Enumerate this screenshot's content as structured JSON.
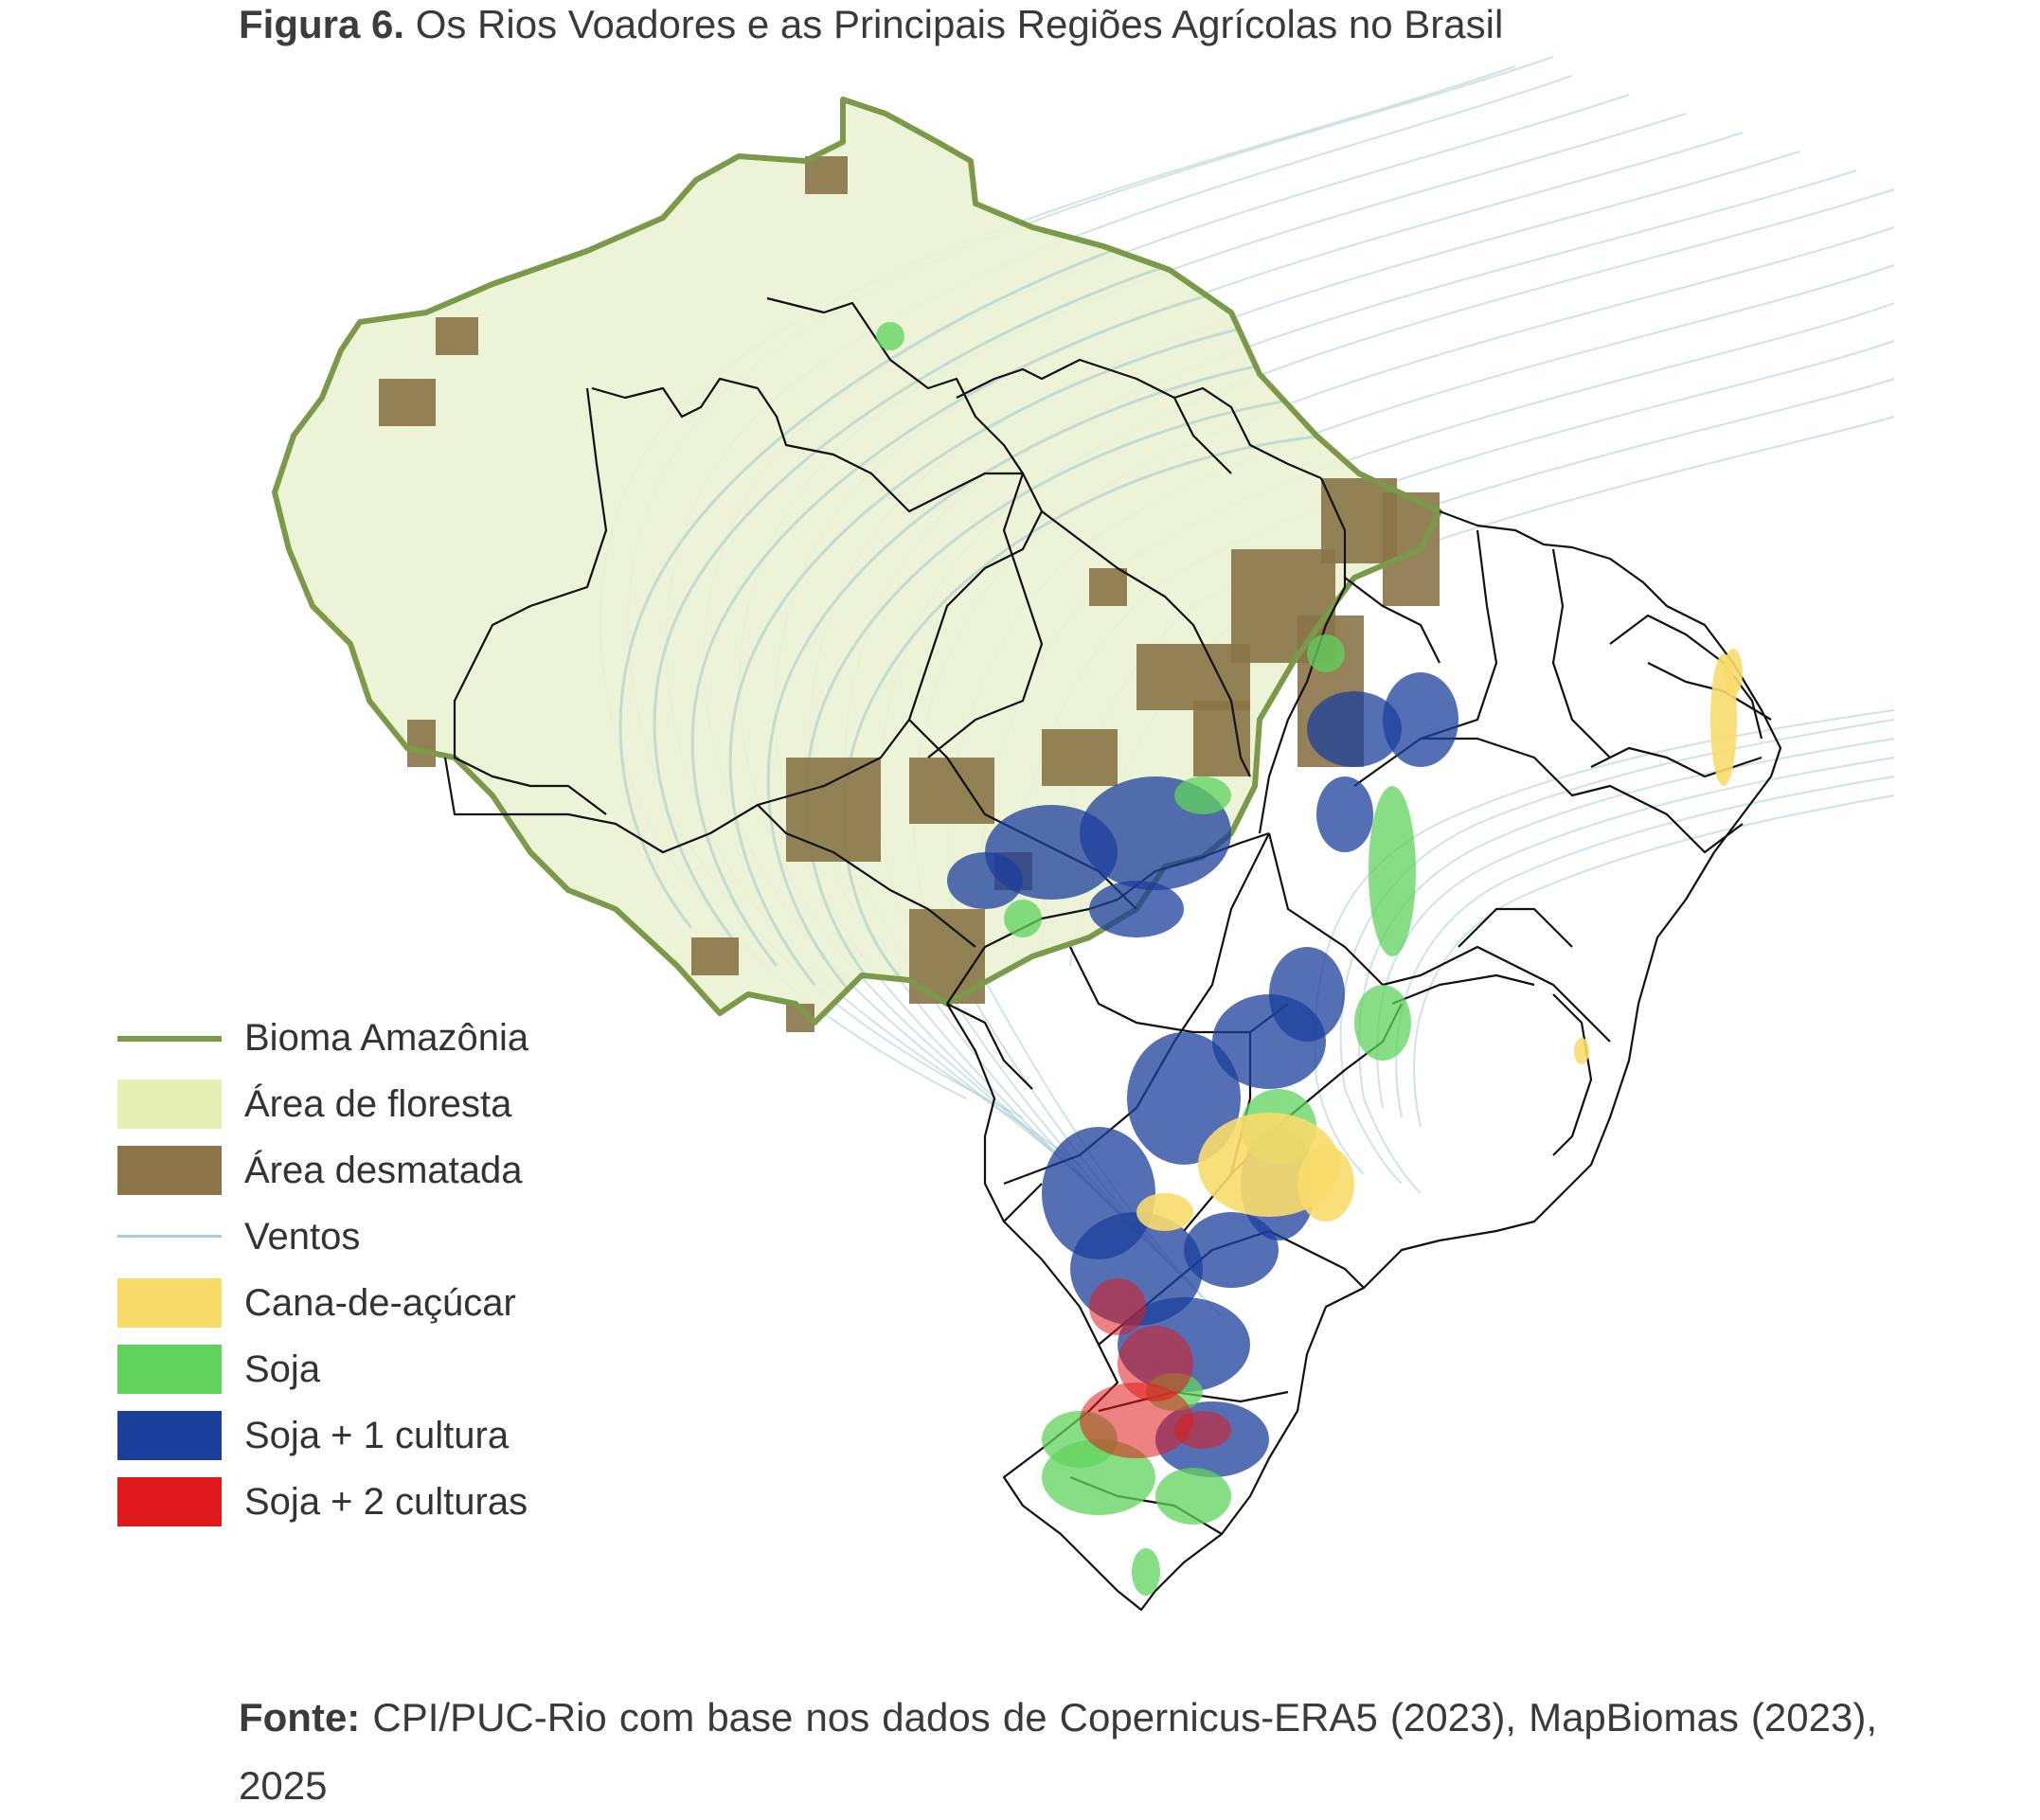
{
  "title": {
    "figure_label": "Figura 6.",
    "text": "Os Rios Voadores e as Principais Regiões Agrícolas no Brasil"
  },
  "legend": {
    "items": [
      {
        "label": "Bioma Amazônia",
        "color": "#7a9a4a",
        "kind": "line"
      },
      {
        "label": "Área de floresta",
        "color": "#e6f0b4",
        "kind": "fill"
      },
      {
        "label": "Área desmatada",
        "color": "#8a7448",
        "kind": "fill"
      },
      {
        "label": "Ventos",
        "color": "#a8ccd4",
        "kind": "thin-line"
      },
      {
        "label": "Cana-de-açúcar",
        "color": "#f8dc6a",
        "kind": "fill"
      },
      {
        "label": "Soja",
        "color": "#5fd35c",
        "kind": "fill"
      },
      {
        "label": "Soja + 1 cultura",
        "color": "#1c3f9c",
        "kind": "fill"
      },
      {
        "label": "Soja + 2 culturas",
        "color": "#e01a1a",
        "kind": "fill"
      }
    ]
  },
  "source": {
    "label": "Fonte:",
    "text": "CPI/PUC-Rio com base nos dados de Copernicus-ERA5 (2023), MapBiomas (2023), 2025"
  },
  "colors": {
    "amazon_border": "#7a9a4a",
    "forest": "#eaf2d4",
    "deforested": "#8a7448",
    "winds": "#a8ccd4",
    "state_border": "#111111",
    "sugarcane": "#f8dc6a",
    "soy": "#5fd35c",
    "soy_plus_1": "#1c3f9c",
    "soy_plus_2": "#e01a1a"
  }
}
